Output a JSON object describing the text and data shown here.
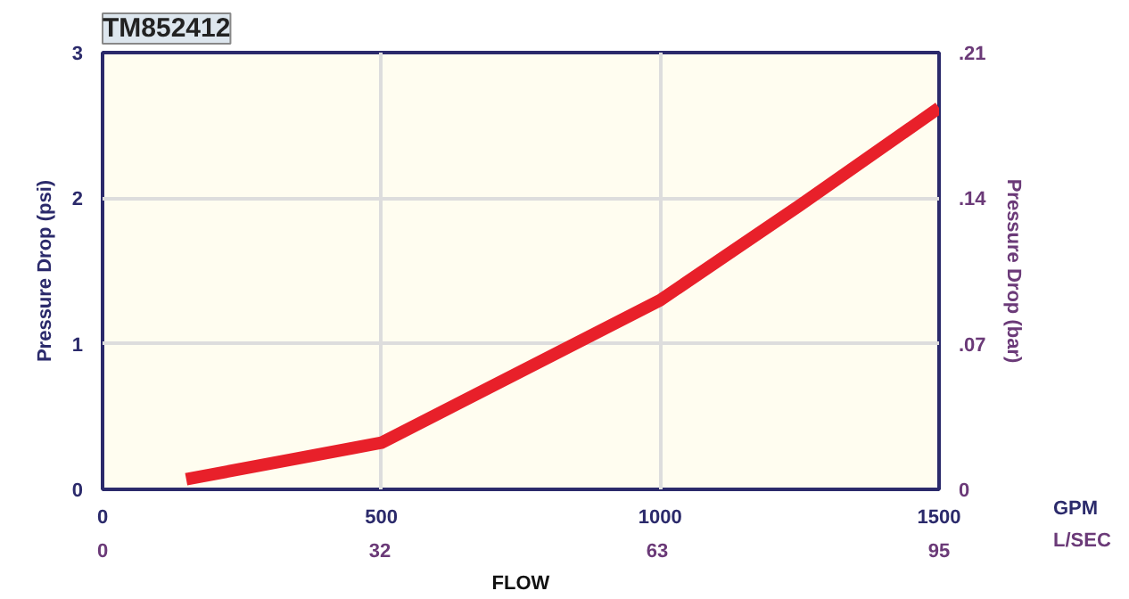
{
  "chart_data": {
    "type": "line",
    "title": "TM852412",
    "xlabel": "FLOW",
    "ylabel": "Pressure Drop (psi)",
    "y2label": "Pressure Drop (bar)",
    "x": [
      150,
      500,
      1000,
      1250,
      1500
    ],
    "series": [
      {
        "color": "#e8202a",
        "values": [
          0.07,
          0.32,
          1.3,
          1.95,
          2.62
        ]
      }
    ],
    "xlim": [
      0,
      1500
    ],
    "xticks": [
      0,
      500,
      1000,
      1500
    ],
    "x2lim": [
      0,
      95
    ],
    "x2ticks": [
      0,
      {
        "value": 31.5,
        "label": "32"
      },
      {
        "value": 63,
        "label": "63"
      },
      95
    ],
    "ylim": [
      0,
      3
    ],
    "yticks": [
      0,
      1,
      2,
      3
    ],
    "y2lim": [
      0,
      0.21
    ],
    "y2ticks": [
      {
        "value": 0,
        "label": "0"
      },
      {
        "value": 0.07,
        "label": ".07"
      },
      {
        "value": 0.14,
        "label": ".14"
      },
      {
        "value": 0.21,
        "label": ".21"
      }
    ],
    "annotations": [
      "GPM",
      "L/SEC"
    ],
    "grid": true,
    "marker": "none",
    "line_style": "solid"
  }
}
